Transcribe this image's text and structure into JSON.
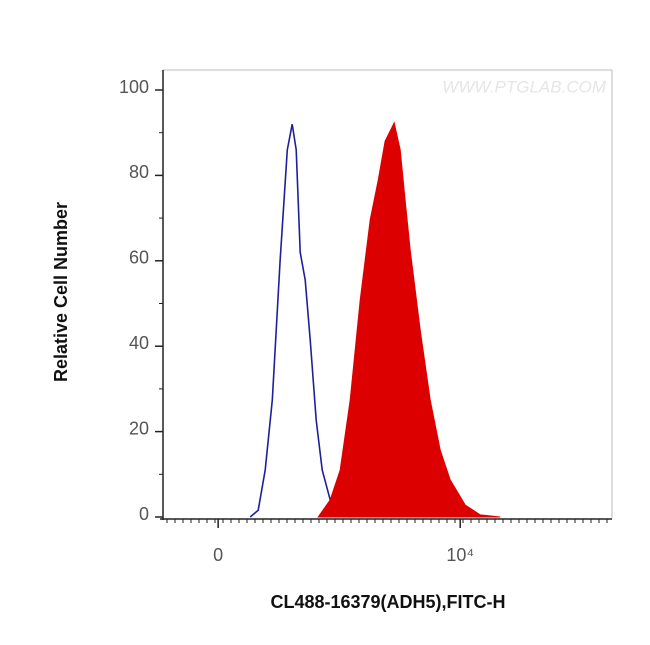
{
  "chart_data": {
    "type": "line",
    "xlabel": "CL488-16379(ADH5),FITC-H",
    "ylabel": "Relative Cell Number",
    "watermark": "WWW.PTGLAB.COM",
    "xscale": "biexponential",
    "xlim": [
      -204,
      215000
    ],
    "xticks": [
      {
        "value": 0,
        "label": "0"
      },
      {
        "value": 10000,
        "label": "10⁴"
      }
    ],
    "ylim": [
      0,
      100
    ],
    "yticks": [
      0,
      20,
      40,
      60,
      80,
      100
    ],
    "grid": false,
    "series": [
      {
        "color": "#1f1f9c",
        "fill": false,
        "x": [
          104,
          135,
          165,
          199,
          241,
          285,
          318,
          348,
          380,
          423,
          470,
          534,
          605,
          714,
          878,
          1077
        ],
        "values": [
          0,
          1.6,
          11,
          27.4,
          60,
          86,
          92,
          86,
          62,
          55.5,
          41.5,
          22.7,
          11,
          4,
          1.2,
          0
        ]
      },
      {
        "color": "#dd0000",
        "fill": true,
        "x": [
          557,
          714,
          878,
          1077,
          1320,
          1617,
          1905,
          2190,
          2630,
          2970,
          3290,
          3640,
          4450,
          5450,
          6670,
          8170,
          11060,
          14980,
          22460
        ],
        "values": [
          0,
          4,
          11,
          27.4,
          50.8,
          69.6,
          79,
          88,
          92.3,
          86,
          74,
          62.5,
          43.8,
          27.4,
          15.7,
          8.7,
          2.8,
          0.5,
          0
        ]
      }
    ]
  }
}
